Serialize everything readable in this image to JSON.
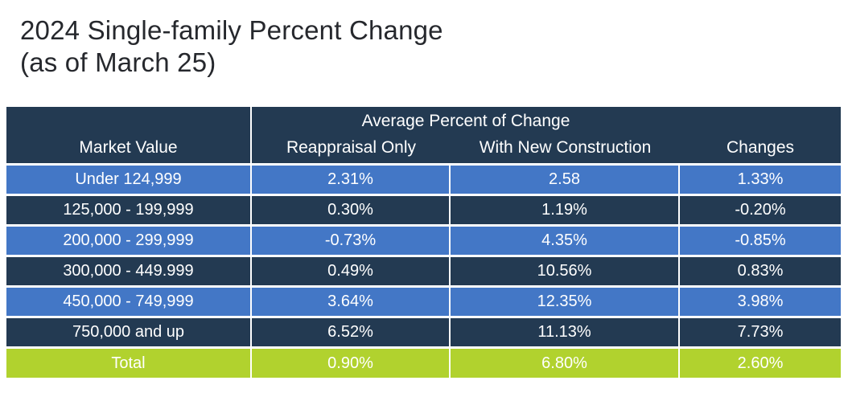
{
  "title": {
    "line1": "2024 Single-family Percent Change",
    "line2": "(as of March 25)"
  },
  "table": {
    "group_header": "Average Percent of Change",
    "columns": {
      "market_value": "Market Value",
      "reappraisal_only": "Reappraisal Only",
      "with_new_construction": "With New Construction",
      "changes": "Changes"
    },
    "rows": [
      {
        "market_value": "Under 124,999",
        "reappraisal_only": "2.31%",
        "with_new_construction": "2.58",
        "changes": "1.33%"
      },
      {
        "market_value": "125,000 - 199,999",
        "reappraisal_only": "0.30%",
        "with_new_construction": "1.19%",
        "changes": "-0.20%"
      },
      {
        "market_value": "200,000 - 299,999",
        "reappraisal_only": "-0.73%",
        "with_new_construction": "4.35%",
        "changes": "-0.85%"
      },
      {
        "market_value": "300,000 - 449.999",
        "reappraisal_only": "0.49%",
        "with_new_construction": "10.56%",
        "changes": "0.83%"
      },
      {
        "market_value": "450,000 - 749,999",
        "reappraisal_only": "3.64%",
        "with_new_construction": "12.35%",
        "changes": "3.98%"
      },
      {
        "market_value": "750,000 and up",
        "reappraisal_only": "6.52%",
        "with_new_construction": "11.13%",
        "changes": "7.73%"
      }
    ],
    "total_row": {
      "label": "Total",
      "reappraisal_only": "0.90%",
      "with_new_construction": "6.80%",
      "changes": "2.60%"
    }
  },
  "colors": {
    "header_dark": "#233a52",
    "row_blue": "#4377c6",
    "row_dark": "#233a52",
    "total_green": "#b1d22e",
    "title_text": "#26282d",
    "table_text": "#ffffff"
  },
  "chart_data": {
    "type": "table",
    "title": "2024 Single-family Percent Change (as of March 25)",
    "columns": [
      "Market Value",
      "Reappraisal Only",
      "With New Construction",
      "Changes"
    ],
    "column_group": {
      "label": "Average Percent of Change",
      "spans": [
        "Reappraisal Only",
        "With New Construction"
      ]
    },
    "rows": [
      [
        "Under 124,999",
        "2.31%",
        "2.58",
        "1.33%"
      ],
      [
        "125,000 - 199,999",
        "0.30%",
        "1.19%",
        "-0.20%"
      ],
      [
        "200,000 - 299,999",
        "-0.73%",
        "4.35%",
        "-0.85%"
      ],
      [
        "300,000 - 449.999",
        "0.49%",
        "10.56%",
        "0.83%"
      ],
      [
        "450,000 - 749,999",
        "3.64%",
        "12.35%",
        "3.98%"
      ],
      [
        "750,000 and up",
        "6.52%",
        "11.13%",
        "7.73%"
      ],
      [
        "Total",
        "0.90%",
        "6.80%",
        "2.60%"
      ]
    ]
  }
}
